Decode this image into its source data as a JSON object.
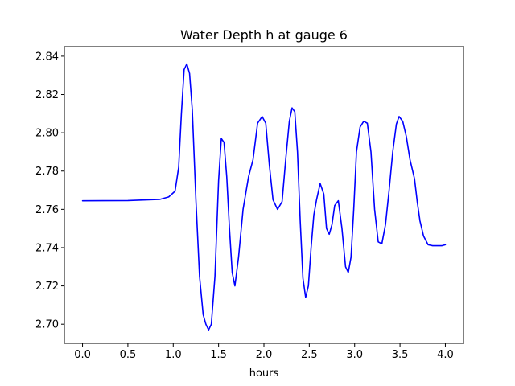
{
  "chart_data": {
    "type": "line",
    "title": "Water Depth h at gauge 6",
    "xlabel": "hours",
    "ylabel": "",
    "xlim": [
      -0.2,
      4.2
    ],
    "ylim": [
      2.69,
      2.845
    ],
    "xticks": [
      0.0,
      0.5,
      1.0,
      1.5,
      2.0,
      2.5,
      3.0,
      3.5,
      4.0
    ],
    "xtick_labels": [
      "0.0",
      "0.5",
      "1.0",
      "1.5",
      "2.0",
      "2.5",
      "3.0",
      "3.5",
      "4.0"
    ],
    "yticks": [
      2.7,
      2.72,
      2.74,
      2.76,
      2.78,
      2.8,
      2.82,
      2.84
    ],
    "ytick_labels": [
      "2.70",
      "2.72",
      "2.74",
      "2.76",
      "2.78",
      "2.80",
      "2.82",
      "2.84"
    ],
    "grid": false,
    "series": [
      {
        "color": "#0000ff",
        "x": [
          0.0,
          0.5,
          0.85,
          0.95,
          1.02,
          1.06,
          1.09,
          1.12,
          1.15,
          1.18,
          1.21,
          1.25,
          1.29,
          1.33,
          1.36,
          1.39,
          1.42,
          1.46,
          1.5,
          1.53,
          1.56,
          1.59,
          1.62,
          1.65,
          1.68,
          1.72,
          1.77,
          1.83,
          1.88,
          1.93,
          1.98,
          2.02,
          2.06,
          2.1,
          2.15,
          2.2,
          2.24,
          2.28,
          2.31,
          2.34,
          2.37,
          2.4,
          2.43,
          2.46,
          2.49,
          2.52,
          2.55,
          2.58,
          2.62,
          2.66,
          2.69,
          2.72,
          2.75,
          2.78,
          2.82,
          2.86,
          2.9,
          2.93,
          2.96,
          2.99,
          3.02,
          3.06,
          3.1,
          3.14,
          3.18,
          3.22,
          3.26,
          3.3,
          3.34,
          3.38,
          3.42,
          3.46,
          3.49,
          3.53,
          3.57,
          3.61,
          3.66,
          3.69,
          3.72,
          3.76,
          3.81,
          3.86,
          3.91,
          3.96,
          4.0
        ],
        "y": [
          2.7645,
          2.7646,
          2.7652,
          2.7665,
          2.7695,
          2.782,
          2.81,
          2.833,
          2.836,
          2.831,
          2.812,
          2.765,
          2.725,
          2.705,
          2.7,
          2.697,
          2.7,
          2.725,
          2.775,
          2.797,
          2.795,
          2.777,
          2.75,
          2.727,
          2.72,
          2.735,
          2.76,
          2.777,
          2.786,
          2.805,
          2.8085,
          2.805,
          2.783,
          2.765,
          2.76,
          2.764,
          2.786,
          2.806,
          2.813,
          2.811,
          2.79,
          2.754,
          2.724,
          2.714,
          2.72,
          2.74,
          2.757,
          2.765,
          2.7735,
          2.768,
          2.75,
          2.747,
          2.752,
          2.762,
          2.7645,
          2.75,
          2.73,
          2.727,
          2.735,
          2.76,
          2.79,
          2.803,
          2.806,
          2.805,
          2.79,
          2.76,
          2.743,
          2.742,
          2.752,
          2.77,
          2.79,
          2.8045,
          2.8085,
          2.806,
          2.798,
          2.786,
          2.776,
          2.764,
          2.754,
          2.746,
          2.7415,
          2.741,
          2.741,
          2.741,
          2.7415
        ]
      }
    ]
  }
}
